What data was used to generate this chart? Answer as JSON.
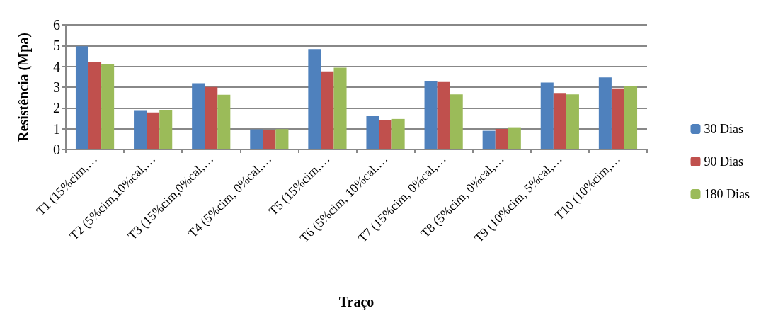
{
  "chart_data": {
    "type": "bar",
    "xlabel": "Traço",
    "ylabel": "Resistência (Mpa)",
    "categories": [
      "T1 (15%cim,…",
      "T2 (5%cim,10%cal,…",
      "T3 (15%cim,0%cal,…",
      "T4 (5%cim, 0%cal,…",
      "T5 (15%cim,…",
      "T6 (5%cim, 10%cal,…",
      "T7 (15%cim, 0%cal,…",
      "T8 (5%cim, 0%cal,…",
      "T9 (10%cim, 5%cal,…",
      "T10 (10%cim,…"
    ],
    "series": [
      {
        "name": "30 Dias",
        "color": "#4f81bd",
        "values": [
          4.97,
          1.89,
          3.19,
          0.97,
          4.83,
          1.6,
          3.3,
          0.9,
          3.22,
          3.47
        ]
      },
      {
        "name": "90 Dias",
        "color": "#c0504d",
        "values": [
          4.2,
          1.78,
          3.01,
          0.94,
          3.76,
          1.42,
          3.25,
          0.99,
          2.72,
          2.94
        ]
      },
      {
        "name": "180 Dias",
        "color": "#9bbb59",
        "values": [
          4.12,
          1.91,
          2.63,
          0.98,
          3.94,
          1.47,
          2.65,
          1.07,
          2.65,
          3.04
        ]
      }
    ],
    "ylim": [
      0,
      6
    ],
    "yticks": [
      0,
      1,
      2,
      3,
      4,
      5,
      6
    ],
    "grid": "y",
    "legend": "right"
  }
}
